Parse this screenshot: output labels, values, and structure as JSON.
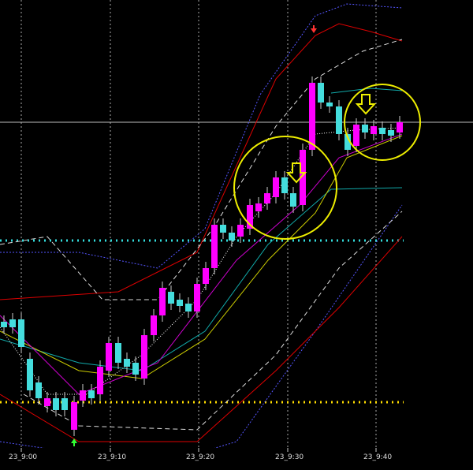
{
  "time_labels": [
    "23_9:00",
    "23_9:10",
    "23_9:20",
    "23_9:30",
    "23_9:40"
  ]
}
